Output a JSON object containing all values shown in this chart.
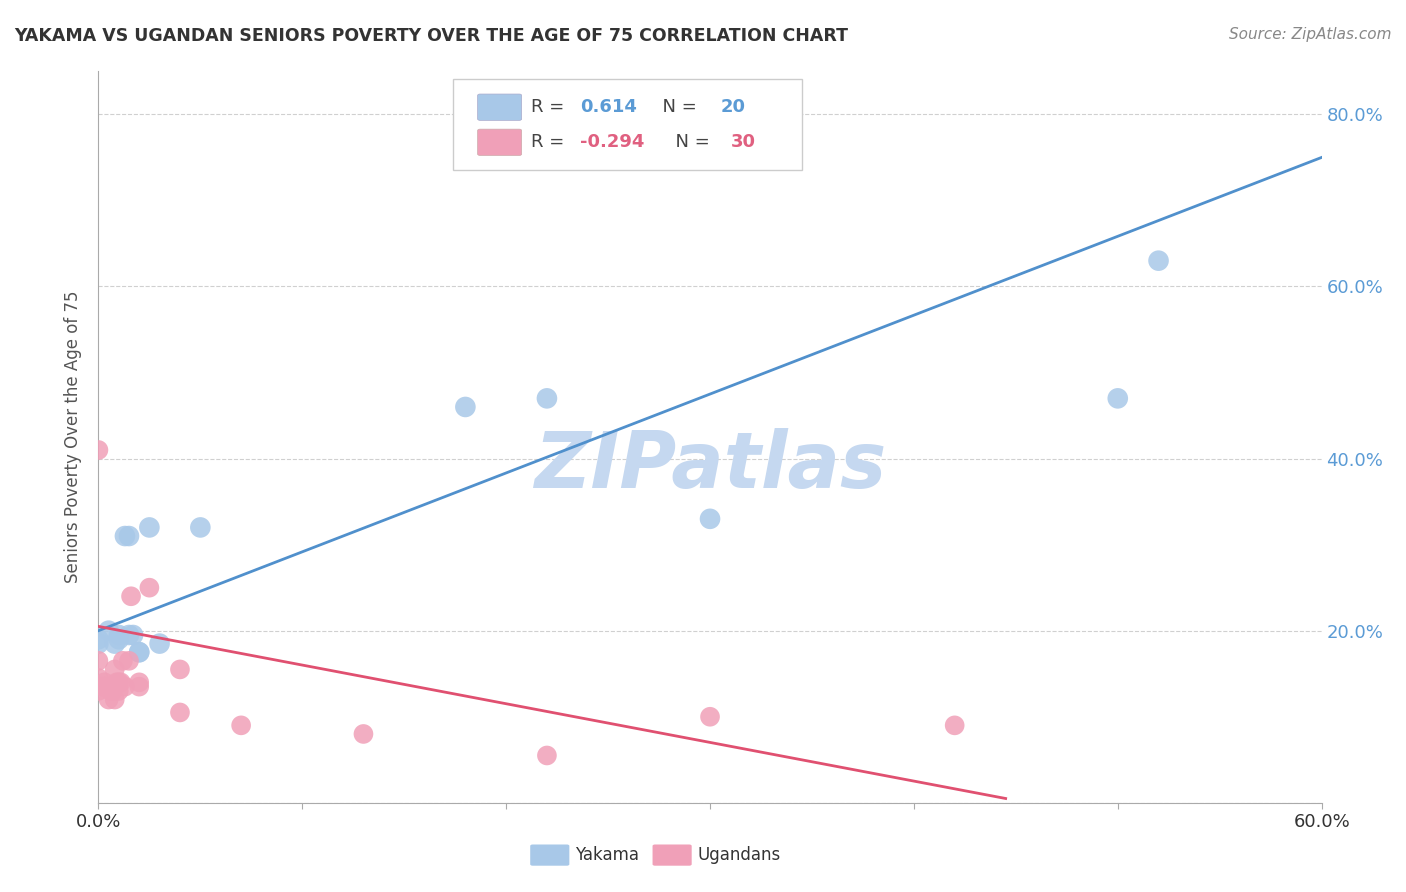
{
  "title": "YAKAMA VS UGANDAN SENIORS POVERTY OVER THE AGE OF 75 CORRELATION CHART",
  "source": "Source: ZipAtlas.com",
  "ylabel": "Seniors Poverty Over the Age of 75",
  "background_color": "#ffffff",
  "grid_color": "#d0d0d0",
  "watermark_text": "ZIPatlas",
  "watermark_color": "#c5d8f0",
  "yakama_color": "#a8c8e8",
  "ugandan_color": "#f0a0b8",
  "yakama_line_color": "#5090cc",
  "ugandan_line_color": "#e05070",
  "legend_yakama_R": "0.614",
  "legend_yakama_N": "20",
  "legend_ugandan_R": "-0.294",
  "legend_ugandan_N": "30",
  "xlim": [
    0.0,
    0.6
  ],
  "ylim": [
    0.0,
    0.85
  ],
  "yakama_x": [
    0.0,
    0.005,
    0.01,
    0.01,
    0.013,
    0.015,
    0.015,
    0.017,
    0.02,
    0.02,
    0.025,
    0.05,
    0.22,
    0.3,
    0.5,
    0.52,
    0.0,
    0.008,
    0.03,
    0.18
  ],
  "yakama_y": [
    0.19,
    0.2,
    0.195,
    0.19,
    0.31,
    0.31,
    0.195,
    0.195,
    0.175,
    0.175,
    0.32,
    0.32,
    0.47,
    0.33,
    0.47,
    0.63,
    0.185,
    0.185,
    0.185,
    0.46
  ],
  "ugandan_x": [
    0.0,
    0.0,
    0.0,
    0.002,
    0.003,
    0.004,
    0.005,
    0.005,
    0.006,
    0.007,
    0.008,
    0.008,
    0.009,
    0.01,
    0.01,
    0.011,
    0.012,
    0.013,
    0.015,
    0.016,
    0.02,
    0.02,
    0.025,
    0.04,
    0.04,
    0.07,
    0.13,
    0.22,
    0.3,
    0.42
  ],
  "ugandan_y": [
    0.13,
    0.145,
    0.165,
    0.135,
    0.14,
    0.135,
    0.12,
    0.135,
    0.13,
    0.13,
    0.12,
    0.155,
    0.14,
    0.13,
    0.14,
    0.14,
    0.165,
    0.135,
    0.165,
    0.24,
    0.135,
    0.14,
    0.25,
    0.155,
    0.105,
    0.09,
    0.08,
    0.055,
    0.1,
    0.09
  ],
  "ugandan_extra_x": [
    0.0
  ],
  "ugandan_extra_y": [
    0.41
  ],
  "yakama_line_x0": 0.0,
  "yakama_line_x1": 0.6,
  "yakama_line_y0": 0.2,
  "yakama_line_y1": 0.75,
  "ugandan_line_x0": 0.0,
  "ugandan_line_x1": 0.445,
  "ugandan_line_y0": 0.205,
  "ugandan_line_y1": 0.005
}
